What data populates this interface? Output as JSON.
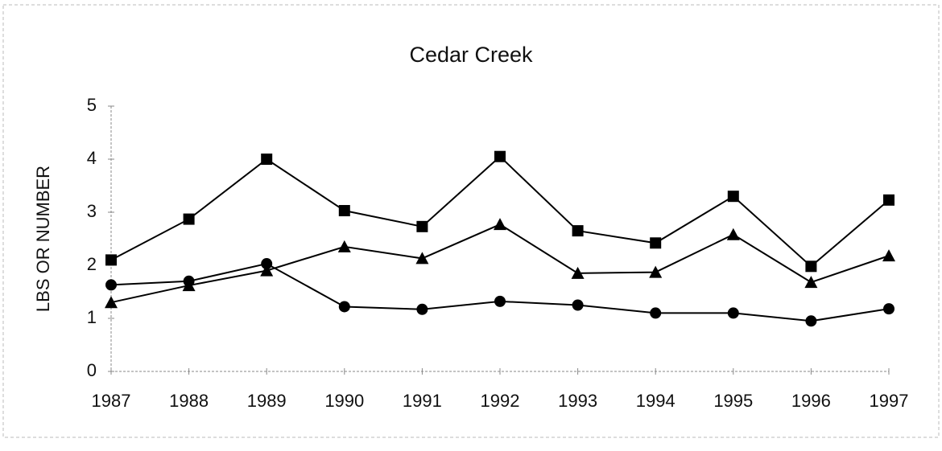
{
  "chart_data": {
    "type": "line",
    "title": "Cedar Creek",
    "y_label": "LBS OR NUMBER",
    "categories": [
      "1987",
      "1988",
      "1989",
      "1990",
      "1991",
      "1992",
      "1993",
      "1994",
      "1995",
      "1996",
      "1997"
    ],
    "series": [
      {
        "color": "#000000",
        "marker": "square",
        "values": [
          2.1,
          2.87,
          4.0,
          3.03,
          2.73,
          4.05,
          2.65,
          2.42,
          3.3,
          1.98,
          3.23
        ]
      },
      {
        "color": "#000000",
        "marker": "triangle",
        "values": [
          1.3,
          1.62,
          1.9,
          2.35,
          2.13,
          2.77,
          1.85,
          1.87,
          2.58,
          1.68,
          2.18
        ]
      },
      {
        "color": "#000000",
        "marker": "circle",
        "values": [
          1.63,
          1.7,
          2.03,
          1.22,
          1.17,
          1.32,
          1.25,
          1.1,
          1.1,
          0.95,
          1.18
        ]
      }
    ],
    "ylim": [
      0,
      5
    ],
    "yticks": [
      0,
      1,
      2,
      3,
      4,
      5
    ],
    "grid": false
  }
}
